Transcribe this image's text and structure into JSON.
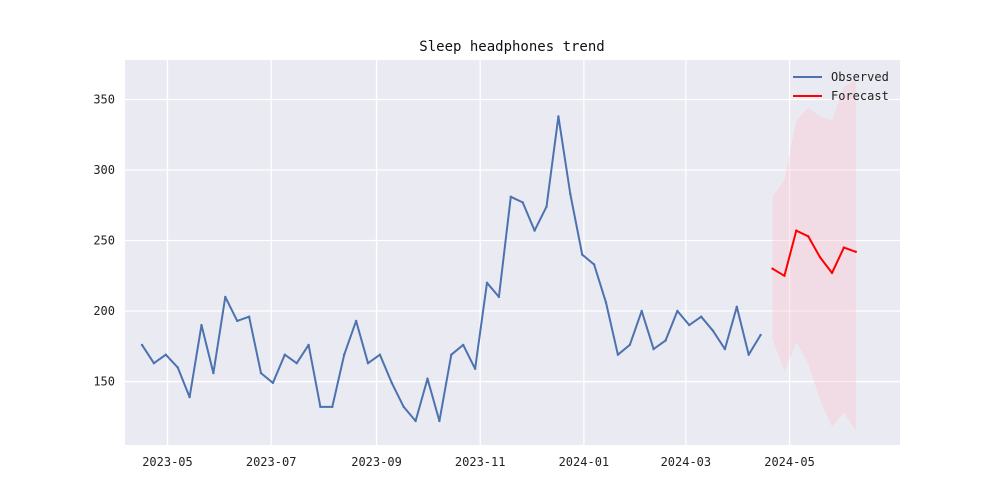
{
  "chart_data": {
    "type": "line",
    "title": "Sleep headphones trend",
    "xlabel": "",
    "ylabel": "",
    "grid": true,
    "legend_position": "top-right",
    "x_tick_labels": [
      "2023-05",
      "2023-07",
      "2023-09",
      "2023-11",
      "2024-01",
      "2024-03",
      "2024-05"
    ],
    "y_ticks": [
      150,
      200,
      250,
      300,
      350
    ],
    "xlim": [
      "2023-04-06",
      "2024-07-05"
    ],
    "ylim": [
      105,
      378
    ],
    "series": [
      {
        "name": "Observed",
        "color": "#4c72b0",
        "x": [
          "2023-04-16",
          "2023-04-23",
          "2023-04-30",
          "2023-05-07",
          "2023-05-14",
          "2023-05-21",
          "2023-05-28",
          "2023-06-04",
          "2023-06-11",
          "2023-06-18",
          "2023-06-25",
          "2023-07-02",
          "2023-07-09",
          "2023-07-16",
          "2023-07-23",
          "2023-07-30",
          "2023-08-06",
          "2023-08-13",
          "2023-08-20",
          "2023-08-27",
          "2023-09-03",
          "2023-09-10",
          "2023-09-17",
          "2023-09-24",
          "2023-10-01",
          "2023-10-08",
          "2023-10-15",
          "2023-10-22",
          "2023-10-29",
          "2023-11-05",
          "2023-11-12",
          "2023-11-19",
          "2023-11-26",
          "2023-12-03",
          "2023-12-10",
          "2023-12-17",
          "2023-12-24",
          "2023-12-31",
          "2024-01-07",
          "2024-01-14",
          "2024-01-21",
          "2024-01-28",
          "2024-02-04",
          "2024-02-11",
          "2024-02-18",
          "2024-02-25",
          "2024-03-03",
          "2024-03-10",
          "2024-03-17",
          "2024-03-24",
          "2024-03-31",
          "2024-04-07",
          "2024-04-14"
        ],
        "values": [
          176,
          163,
          169,
          160,
          139,
          190,
          156,
          210,
          193,
          196,
          156,
          149,
          169,
          163,
          176,
          132,
          132,
          169,
          193,
          163,
          169,
          149,
          132,
          122,
          152,
          122,
          169,
          176,
          159,
          220,
          210,
          281,
          277,
          257,
          274,
          338,
          283,
          240,
          233,
          206,
          169,
          176,
          200,
          173,
          179,
          200,
          190,
          196,
          186,
          173,
          203,
          169,
          183
        ]
      },
      {
        "name": "Forecast",
        "color": "#ff0000",
        "x": [
          "2024-04-21",
          "2024-04-28",
          "2024-05-05",
          "2024-05-12",
          "2024-05-19",
          "2024-05-26",
          "2024-06-02",
          "2024-06-09"
        ],
        "values": [
          230,
          225,
          257,
          253,
          238,
          227,
          245,
          242
        ],
        "interval_lower": [
          180,
          157,
          178,
          163,
          137,
          118,
          128,
          115
        ],
        "interval_upper": [
          281,
          293,
          335,
          344,
          338,
          335,
          359,
          364
        ],
        "interval_color": "#ffc0cb"
      }
    ]
  }
}
